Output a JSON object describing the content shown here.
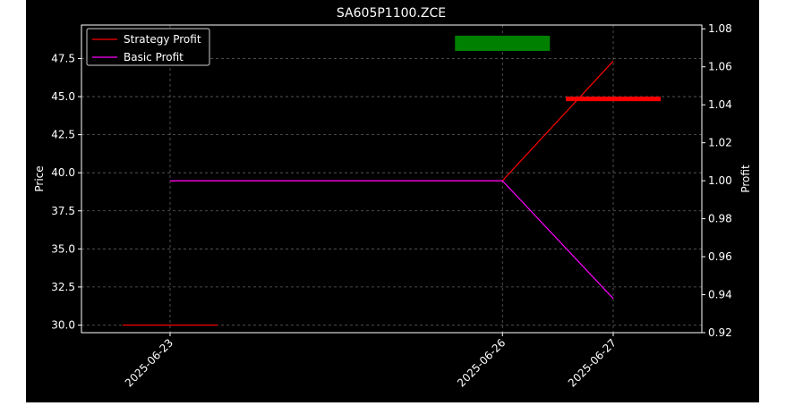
{
  "chart_data": {
    "type": "line",
    "title": "SA605P1100.ZCE",
    "xlabel": "",
    "ylabel": "Price",
    "ylabel_right": "Profit",
    "x": [
      "2025-06-23",
      "2025-06-26",
      "2025-06-27"
    ],
    "x_ticks": [
      "2025-06-23",
      "2025-06-26",
      "2025-06-27"
    ],
    "ylim": [
      29.5,
      49.7
    ],
    "yticks": [
      "30.0",
      "32.5",
      "35.0",
      "37.5",
      "40.0",
      "42.5",
      "45.0",
      "47.5"
    ],
    "ylim_right": [
      0.92,
      1.082
    ],
    "yticks_right": [
      "0.92",
      "0.94",
      "0.96",
      "0.98",
      "1.00",
      "1.02",
      "1.04",
      "1.06",
      "1.08"
    ],
    "grid": true,
    "legend_position": "top-left",
    "price_candles": [
      {
        "x": "2025-06-23",
        "open": 30.0,
        "close": 30.0,
        "color": "#ff0000"
      },
      {
        "x": "2025-06-26",
        "open": 48.0,
        "close": 49.0,
        "color": "#008000"
      },
      {
        "x": "2025-06-27",
        "open": 44.7,
        "close": 45.0,
        "color": "#ff0000"
      }
    ],
    "series": [
      {
        "name": "Strategy Profit",
        "axis": "right",
        "color": "#ff0000",
        "values": [
          1.0,
          1.0,
          1.063
        ]
      },
      {
        "name": "Basic Profit",
        "axis": "right",
        "color": "#ff00ff",
        "values": [
          1.0,
          1.0,
          0.938
        ]
      }
    ]
  }
}
